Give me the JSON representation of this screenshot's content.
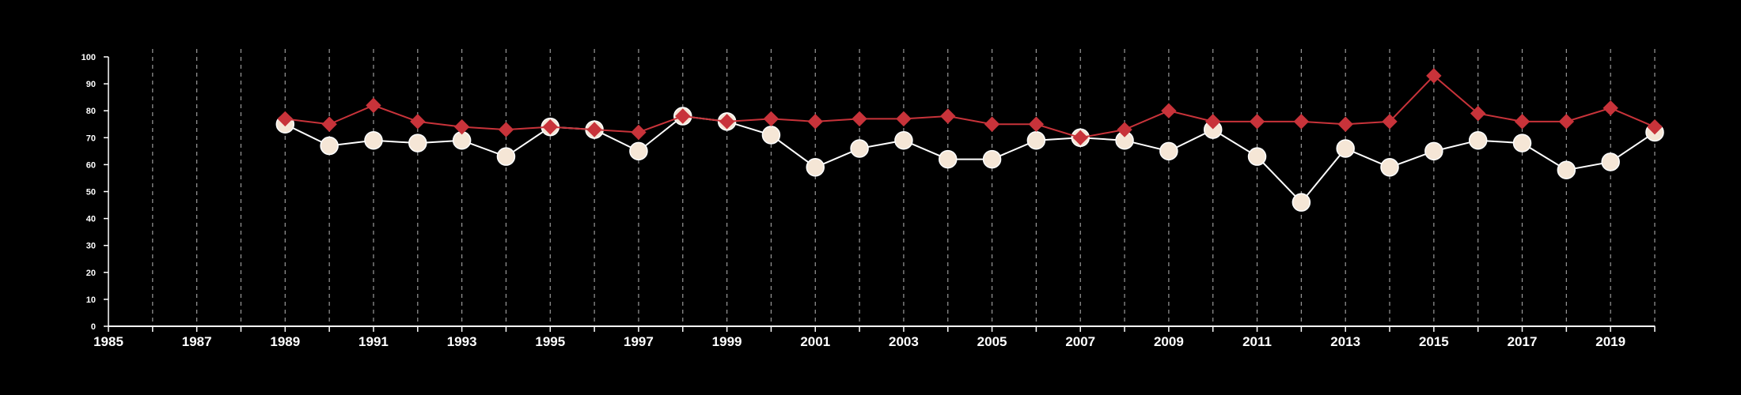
{
  "colors": {
    "background": "#000000",
    "axis": "#ffffff",
    "grid": "#9a9a9a",
    "series_a_line": "#ffffff",
    "series_a_marker": "#f5e6d6",
    "series_b": "#c8333a"
  },
  "chart_data": {
    "type": "line",
    "title": "",
    "xlabel": "",
    "ylabel": "",
    "xlim": [
      1985,
      2020
    ],
    "ylim": [
      0,
      100
    ],
    "x_ticks": [
      1985,
      1987,
      1989,
      1991,
      1993,
      1995,
      1997,
      1999,
      2001,
      2003,
      2005,
      2007,
      2009,
      2011,
      2013,
      2015,
      2017,
      2019
    ],
    "y_ticks": [
      0,
      10,
      20,
      30,
      40,
      50,
      60,
      70,
      80,
      90,
      100
    ],
    "grid": "vertical dashed lines at every year",
    "legend": "none",
    "x": [
      1989,
      1990,
      1991,
      1992,
      1993,
      1994,
      1995,
      1996,
      1997,
      1998,
      1999,
      2000,
      2001,
      2002,
      2003,
      2004,
      2005,
      2006,
      2007,
      2008,
      2009,
      2010,
      2011,
      2012,
      2013,
      2014,
      2015,
      2016,
      2017,
      2018,
      2019,
      2020
    ],
    "series": [
      {
        "marker": "circle",
        "color": "#ffffff",
        "values": [
          75,
          67,
          69,
          68,
          69,
          63,
          74,
          73,
          65,
          78,
          76,
          71,
          59,
          66,
          69,
          62,
          62,
          69,
          70,
          69,
          65,
          73,
          63,
          46,
          66,
          59,
          65,
          69,
          68,
          58,
          61,
          72
        ]
      },
      {
        "marker": "diamond",
        "color": "#c8333a",
        "values": [
          77,
          75,
          82,
          76,
          74,
          73,
          74,
          73,
          72,
          78,
          76,
          77,
          76,
          77,
          77,
          78,
          75,
          75,
          70,
          73,
          80,
          76,
          76,
          76,
          75,
          76,
          93,
          79,
          76,
          76,
          81,
          74
        ]
      }
    ]
  }
}
